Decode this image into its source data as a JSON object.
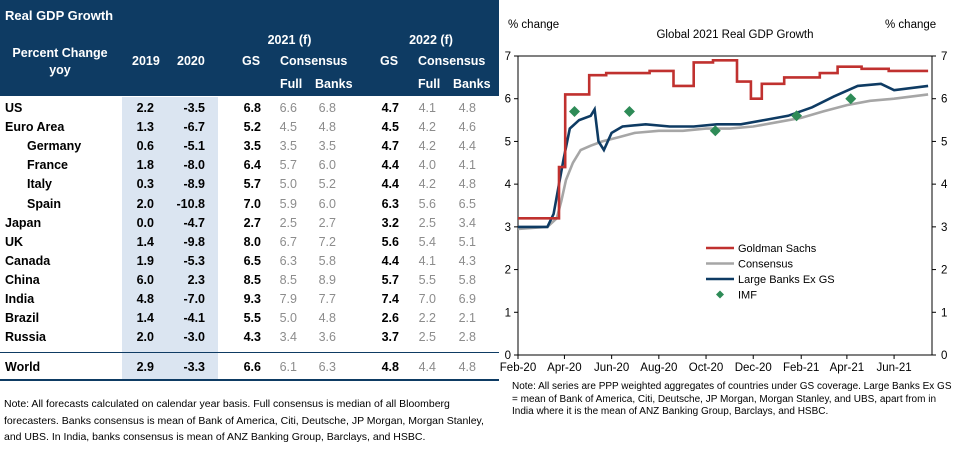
{
  "table": {
    "title": "Real GDP Growth",
    "headers": {
      "row_label": "Percent Change yoy",
      "y2019": "2019",
      "y2020": "2020",
      "f2021": "2021 (f)",
      "f2022": "2022 (f)",
      "gs": "GS",
      "consensus": "Consensus",
      "full": "Full",
      "banks": "Banks"
    },
    "rows": [
      {
        "name": "US",
        "indent": false,
        "v2019": "2.2",
        "v2020": "-3.5",
        "gs21": "6.8",
        "full21": "6.6",
        "banks21": "6.8",
        "gs22": "4.7",
        "full22": "4.1",
        "banks22": "4.8"
      },
      {
        "name": "Euro Area",
        "indent": false,
        "v2019": "1.3",
        "v2020": "-6.7",
        "gs21": "5.2",
        "full21": "4.5",
        "banks21": "4.8",
        "gs22": "4.5",
        "full22": "4.2",
        "banks22": "4.6"
      },
      {
        "name": "Germany",
        "indent": true,
        "v2019": "0.6",
        "v2020": "-5.1",
        "gs21": "3.5",
        "full21": "3.5",
        "banks21": "3.5",
        "gs22": "4.7",
        "full22": "4.2",
        "banks22": "4.4"
      },
      {
        "name": "France",
        "indent": true,
        "v2019": "1.8",
        "v2020": "-8.0",
        "gs21": "6.4",
        "full21": "5.7",
        "banks21": "6.0",
        "gs22": "4.4",
        "full22": "4.0",
        "banks22": "4.1"
      },
      {
        "name": "Italy",
        "indent": true,
        "v2019": "0.3",
        "v2020": "-8.9",
        "gs21": "5.7",
        "full21": "5.0",
        "banks21": "5.2",
        "gs22": "4.4",
        "full22": "4.2",
        "banks22": "4.8"
      },
      {
        "name": "Spain",
        "indent": true,
        "v2019": "2.0",
        "v2020": "-10.8",
        "gs21": "7.0",
        "full21": "5.9",
        "banks21": "6.0",
        "gs22": "6.3",
        "full22": "5.6",
        "banks22": "6.5"
      },
      {
        "name": "Japan",
        "indent": false,
        "v2019": "0.0",
        "v2020": "-4.7",
        "gs21": "2.7",
        "full21": "2.5",
        "banks21": "2.7",
        "gs22": "3.2",
        "full22": "2.5",
        "banks22": "3.4"
      },
      {
        "name": "UK",
        "indent": false,
        "v2019": "1.4",
        "v2020": "-9.8",
        "gs21": "8.0",
        "full21": "6.7",
        "banks21": "7.2",
        "gs22": "5.6",
        "full22": "5.4",
        "banks22": "5.1"
      },
      {
        "name": "Canada",
        "indent": false,
        "v2019": "1.9",
        "v2020": "-5.3",
        "gs21": "6.5",
        "full21": "6.3",
        "banks21": "5.8",
        "gs22": "4.4",
        "full22": "4.1",
        "banks22": "4.3"
      },
      {
        "name": "China",
        "indent": false,
        "v2019": "6.0",
        "v2020": "2.3",
        "gs21": "8.5",
        "full21": "8.5",
        "banks21": "8.9",
        "gs22": "5.7",
        "full22": "5.5",
        "banks22": "5.8"
      },
      {
        "name": "India",
        "indent": false,
        "v2019": "4.8",
        "v2020": "-7.0",
        "gs21": "9.3",
        "full21": "7.9",
        "banks21": "7.7",
        "gs22": "7.4",
        "full22": "7.0",
        "banks22": "6.9"
      },
      {
        "name": "Brazil",
        "indent": false,
        "v2019": "1.4",
        "v2020": "-4.1",
        "gs21": "5.5",
        "full21": "5.0",
        "banks21": "4.8",
        "gs22": "2.6",
        "full22": "2.2",
        "banks22": "2.1"
      },
      {
        "name": "Russia",
        "indent": false,
        "v2019": "2.0",
        "v2020": "-3.0",
        "gs21": "4.3",
        "full21": "3.4",
        "banks21": "3.6",
        "gs22": "3.7",
        "full22": "2.5",
        "banks22": "2.8"
      }
    ],
    "world": {
      "name": "World",
      "v2019": "2.9",
      "v2020": "-3.3",
      "gs21": "6.6",
      "full21": "6.1",
      "banks21": "6.3",
      "gs22": "4.8",
      "full22": "4.4",
      "banks22": "4.8"
    },
    "note": "Note: All forecasts calculated on calendar year basis. Full consensus is median of all Bloomberg forecasters. Banks consensus is mean of Bank of America, Citi, Deutsche, JP Morgan, Morgan Stanley, and UBS.  In India, banks consensus is mean of ANZ Banking Group, Barclays, and HSBC."
  },
  "chart_data": {
    "type": "line",
    "title": "Global 2021 Real GDP Growth",
    "ylabel_left": "% change",
    "ylabel_right": "% change",
    "ylim": [
      0,
      7
    ],
    "yticks": [
      "0",
      "1",
      "2",
      "3",
      "4",
      "5",
      "6",
      "7"
    ],
    "x_range": [
      "2020-02-01",
      "2021-07-20"
    ],
    "xticks": [
      {
        "label": "Feb-20",
        "date": "2020-02-01"
      },
      {
        "label": "Apr-20",
        "date": "2020-04-01"
      },
      {
        "label": "Jun-20",
        "date": "2020-06-01"
      },
      {
        "label": "Aug-20",
        "date": "2020-08-01"
      },
      {
        "label": "Oct-20",
        "date": "2020-10-01"
      },
      {
        "label": "Dec-20",
        "date": "2020-12-01"
      },
      {
        "label": "Feb-21",
        "date": "2021-02-01"
      },
      {
        "label": "Apr-21",
        "date": "2021-04-01"
      },
      {
        "label": "Jun-21",
        "date": "2021-06-01"
      }
    ],
    "series": [
      {
        "name": "Goldman Sachs",
        "color": "#c0312f",
        "step": true,
        "points": [
          [
            "2020-02-01",
            3.2
          ],
          [
            "2020-03-25",
            3.2
          ],
          [
            "2020-03-25",
            4.4
          ],
          [
            "2020-04-02",
            4.4
          ],
          [
            "2020-04-02",
            6.1
          ],
          [
            "2020-05-03",
            6.1
          ],
          [
            "2020-05-03",
            6.55
          ],
          [
            "2020-05-25",
            6.55
          ],
          [
            "2020-05-25",
            6.6
          ],
          [
            "2020-07-20",
            6.6
          ],
          [
            "2020-07-20",
            6.65
          ],
          [
            "2020-08-20",
            6.65
          ],
          [
            "2020-08-20",
            6.3
          ],
          [
            "2020-09-15",
            6.3
          ],
          [
            "2020-09-15",
            6.85
          ],
          [
            "2020-10-10",
            6.85
          ],
          [
            "2020-10-10",
            6.9
          ],
          [
            "2020-11-10",
            6.9
          ],
          [
            "2020-11-10",
            6.4
          ],
          [
            "2020-11-28",
            6.4
          ],
          [
            "2020-11-28",
            6.0
          ],
          [
            "2020-12-12",
            6.0
          ],
          [
            "2020-12-12",
            6.35
          ],
          [
            "2021-01-10",
            6.35
          ],
          [
            "2021-01-10",
            6.5
          ],
          [
            "2021-02-25",
            6.5
          ],
          [
            "2021-02-25",
            6.6
          ],
          [
            "2021-03-20",
            6.6
          ],
          [
            "2021-03-20",
            6.75
          ],
          [
            "2021-04-20",
            6.75
          ],
          [
            "2021-04-20",
            6.7
          ],
          [
            "2021-05-25",
            6.7
          ],
          [
            "2021-05-25",
            6.65
          ],
          [
            "2021-07-15",
            6.65
          ]
        ]
      },
      {
        "name": "Consensus",
        "color": "#a6a6a6",
        "step": false,
        "points": [
          [
            "2020-02-01",
            2.95
          ],
          [
            "2020-03-10",
            3.0
          ],
          [
            "2020-03-22",
            3.2
          ],
          [
            "2020-03-28",
            3.6
          ],
          [
            "2020-04-03",
            4.1
          ],
          [
            "2020-04-12",
            4.5
          ],
          [
            "2020-04-22",
            4.8
          ],
          [
            "2020-05-05",
            4.9
          ],
          [
            "2020-05-20",
            5.0
          ],
          [
            "2020-06-10",
            5.1
          ],
          [
            "2020-07-01",
            5.2
          ],
          [
            "2020-08-01",
            5.25
          ],
          [
            "2020-09-01",
            5.25
          ],
          [
            "2020-10-01",
            5.3
          ],
          [
            "2020-11-01",
            5.3
          ],
          [
            "2020-12-01",
            5.35
          ],
          [
            "2021-01-01",
            5.45
          ],
          [
            "2021-02-01",
            5.55
          ],
          [
            "2021-03-01",
            5.7
          ],
          [
            "2021-04-01",
            5.85
          ],
          [
            "2021-05-01",
            5.95
          ],
          [
            "2021-06-01",
            6.0
          ],
          [
            "2021-07-15",
            6.1
          ]
        ]
      },
      {
        "name": "Large Banks Ex GS",
        "color": "#0e3b63",
        "step": false,
        "points": [
          [
            "2020-02-01",
            3.0
          ],
          [
            "2020-03-10",
            3.0
          ],
          [
            "2020-03-18",
            3.3
          ],
          [
            "2020-03-25",
            4.0
          ],
          [
            "2020-03-31",
            4.6
          ],
          [
            "2020-04-08",
            5.3
          ],
          [
            "2020-04-20",
            5.5
          ],
          [
            "2020-05-05",
            5.6
          ],
          [
            "2020-05-10",
            5.75
          ],
          [
            "2020-05-15",
            5.0
          ],
          [
            "2020-05-22",
            4.8
          ],
          [
            "2020-06-01",
            5.2
          ],
          [
            "2020-06-15",
            5.35
          ],
          [
            "2020-07-15",
            5.4
          ],
          [
            "2020-08-15",
            5.35
          ],
          [
            "2020-09-15",
            5.35
          ],
          [
            "2020-10-15",
            5.4
          ],
          [
            "2020-11-15",
            5.4
          ],
          [
            "2020-12-15",
            5.5
          ],
          [
            "2021-01-15",
            5.6
          ],
          [
            "2021-02-15",
            5.8
          ],
          [
            "2021-03-15",
            6.05
          ],
          [
            "2021-04-15",
            6.3
          ],
          [
            "2021-05-15",
            6.35
          ],
          [
            "2021-06-01",
            6.2
          ],
          [
            "2021-07-15",
            6.3
          ]
        ]
      },
      {
        "name": "IMF",
        "color": "#2e8b57",
        "marker": "diamond",
        "points": [
          [
            "2020-04-14",
            5.7
          ],
          [
            "2020-06-24",
            5.7
          ],
          [
            "2020-10-13",
            5.25
          ],
          [
            "2021-01-26",
            5.6
          ],
          [
            "2021-04-06",
            6.0
          ]
        ]
      }
    ],
    "legend": [
      "Goldman Sachs",
      "Consensus",
      "Large Banks Ex GS",
      "IMF"
    ],
    "legend_position": "lower-right",
    "note": "Note: All series are PPP weighted aggregates of countries under GS coverage. Large Banks Ex GS = mean of Bank of America, Citi, Deutsche, JP Morgan, Morgan Stanley, and UBS, apart from in India where it is the mean of ANZ Banking Group, Barclays, and HSBC."
  }
}
